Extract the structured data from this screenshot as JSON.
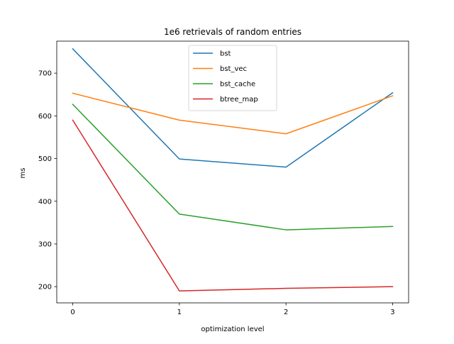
{
  "chart_data": {
    "type": "line",
    "title": "1e6 retrievals of random entries",
    "xlabel": "optimization level",
    "ylabel": "ms",
    "x": [
      0,
      1,
      2,
      3
    ],
    "xlim": [
      -0.15,
      3.15
    ],
    "ylim": [
      162,
      775
    ],
    "xticks": [
      "0",
      "1",
      "2",
      "3"
    ],
    "yticks": [
      200,
      300,
      400,
      500,
      600,
      700
    ],
    "grid": false,
    "legend_position": "top-center",
    "series": [
      {
        "name": "bst",
        "color": "#1f77b4",
        "values": [
          757,
          499,
          480,
          654
        ]
      },
      {
        "name": "bst_vec",
        "color": "#ff7f0e",
        "values": [
          653,
          590,
          558,
          647
        ]
      },
      {
        "name": "bst_cache",
        "color": "#2ca02c",
        "values": [
          627,
          370,
          333,
          341
        ]
      },
      {
        "name": "btree_map",
        "color": "#d62728",
        "values": [
          590,
          190,
          196,
          200
        ]
      }
    ]
  }
}
